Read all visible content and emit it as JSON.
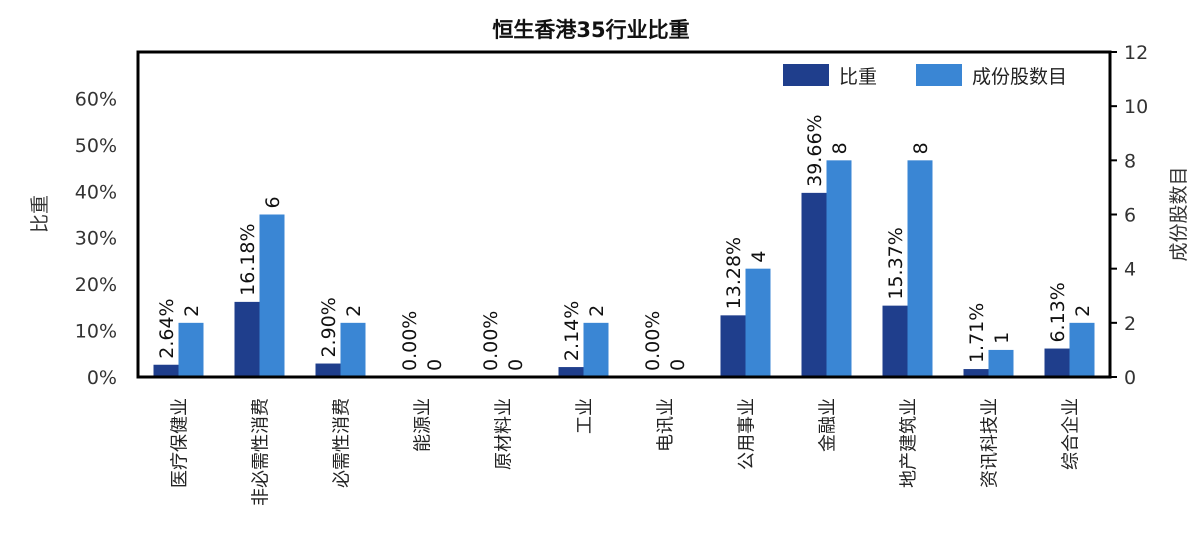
{
  "chart_data": {
    "type": "bar",
    "title": "恒生香港35行业比重",
    "categories": [
      "医疗保健业",
      "非必需性消费",
      "必需性消费",
      "能源业",
      "原材料业",
      "工业",
      "电讯业",
      "公用事业",
      "金融业",
      "地产建筑业",
      "资讯科技业",
      "综合企业"
    ],
    "series": [
      {
        "name": "比重",
        "axis": "left",
        "color": "#1f3e8c",
        "values": [
          2.64,
          16.18,
          2.9,
          0.0,
          0.0,
          2.14,
          0.0,
          13.28,
          39.66,
          15.37,
          1.71,
          6.13
        ],
        "labels": [
          "2.64%",
          "16.18%",
          "2.90%",
          "0.00%",
          "0.00%",
          "2.14%",
          "0.00%",
          "13.28%",
          "39.66%",
          "15.37%",
          "1.71%",
          "6.13%"
        ]
      },
      {
        "name": "成份股数目",
        "axis": "right",
        "color": "#3a86d4",
        "values": [
          2,
          6,
          2,
          0,
          0,
          2,
          0,
          4,
          8,
          8,
          1,
          2
        ],
        "labels": [
          "2",
          "6",
          "2",
          "0",
          "0",
          "2",
          "0",
          "4",
          "8",
          "8",
          "1",
          "2"
        ]
      }
    ],
    "ylabel_left": "比重",
    "ylabel_right": "成份股数目",
    "ylim_left": [
      0,
      70
    ],
    "ylim_right": [
      0,
      12
    ],
    "yticks_left": [
      "0%",
      "10%",
      "20%",
      "30%",
      "40%",
      "50%",
      "60%"
    ],
    "yticks_left_values": [
      0,
      10,
      20,
      30,
      40,
      50,
      60
    ],
    "yticks_right": [
      "0",
      "2",
      "4",
      "6",
      "8",
      "10",
      "12"
    ],
    "yticks_right_values": [
      0,
      2,
      4,
      6,
      8,
      10,
      12
    ],
    "grid": false,
    "legend_position": "top-right"
  }
}
